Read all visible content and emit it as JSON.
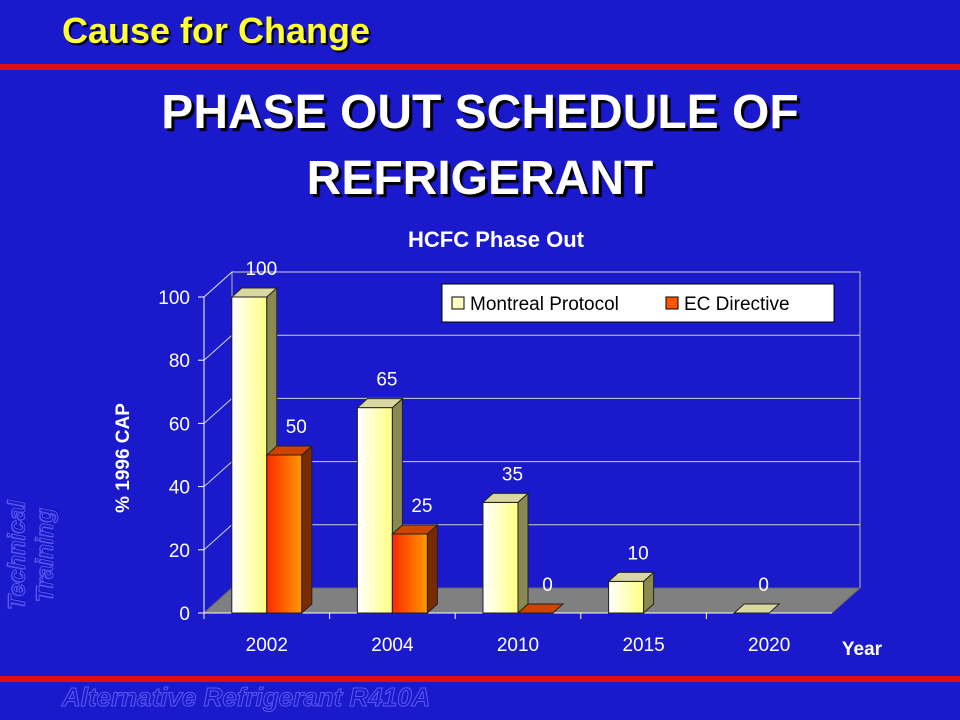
{
  "header": {
    "section_title": "Cause for Change",
    "main_title_line1": "PHASE OUT SCHEDULE OF",
    "main_title_line2": "REFRIGERANT"
  },
  "sidebar": {
    "vertical_text": "Technical Training"
  },
  "footer": {
    "text": "Alternative Refrigerant R410A"
  },
  "colors": {
    "background": "#1a1acc",
    "title_yellow": "#ffff33",
    "rule_red": "#e01010",
    "montreal_bar": "#ffffc0",
    "ec_bar": "#ff5500"
  },
  "chart_data": {
    "type": "bar",
    "title": "HCFC Phase Out",
    "xlabel": "Year",
    "ylabel": "% 1996 CAP",
    "categories": [
      "2002",
      "2004",
      "2010",
      "2015",
      "2020"
    ],
    "series": [
      {
        "name": "Montreal Protocol",
        "values": [
          100,
          65,
          35,
          10,
          0
        ],
        "labels": [
          "100",
          "65",
          "35",
          "10",
          "0"
        ]
      },
      {
        "name": "EC Directive",
        "values": [
          50,
          25,
          0,
          null,
          null
        ],
        "labels": [
          "50",
          "25",
          "0",
          "",
          ""
        ]
      }
    ],
    "ylim": [
      0,
      100
    ],
    "yticks": [
      "0",
      "20",
      "40",
      "60",
      "80",
      "100"
    ],
    "grid": true,
    "legend": "top-right",
    "style": "3d"
  }
}
